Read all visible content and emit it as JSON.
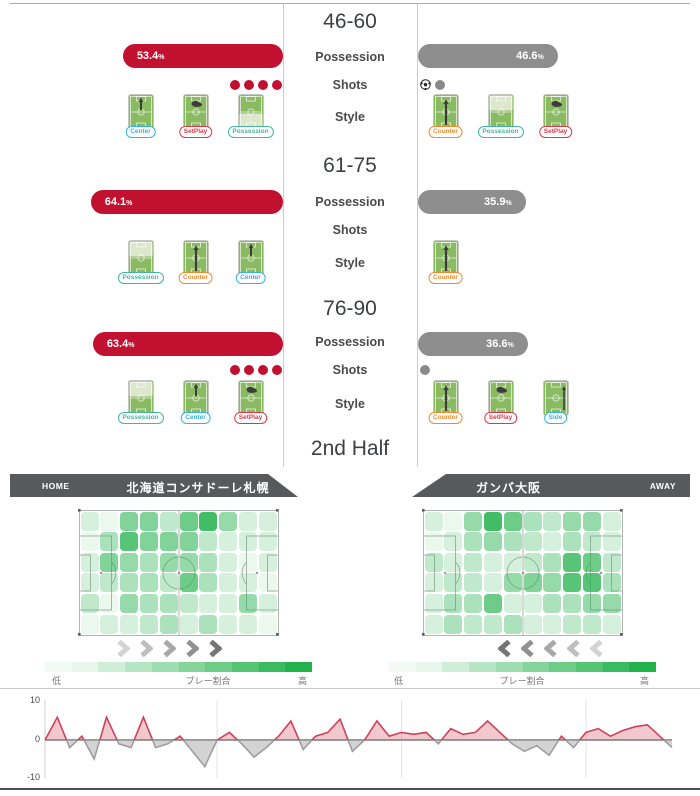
{
  "stat_labels": {
    "possession": "Possession",
    "shots": "Shots",
    "style": "Style"
  },
  "half_label": "2nd Half",
  "teams": {
    "home": {
      "tag": "HOME",
      "name": "北海道コンサドーレ札幌",
      "color": "#c11030"
    },
    "away": {
      "tag": "AWAY",
      "name": "ガンバ大阪",
      "color": "#8e8e8e"
    }
  },
  "style_types": {
    "Center": {
      "color": "#39b1e4",
      "art": "arrow-center"
    },
    "Counter": {
      "color": "#f08c2e",
      "art": "arrow-long"
    },
    "Side": {
      "color": "#39b1e4",
      "art": "arrow-side"
    },
    "SetPlay": {
      "color": "#d93a4a",
      "art": "boot"
    },
    "Possession": {
      "color": "#43b5a0",
      "art": "zone"
    }
  },
  "periods": [
    {
      "home_styles": [
        {
          "type": "Center"
        },
        {
          "type": "SetPlay"
        },
        {
          "type": "Possession",
          "zone": "bottom"
        }
      ],
      "away_styles": [
        {
          "type": "Counter"
        },
        {
          "type": "Possession",
          "zone": "top"
        },
        {
          "type": "SetPlay"
        }
      ]
    },
    {
      "home_styles": [
        {
          "type": "Possession",
          "zone": "top"
        },
        {
          "type": "Counter"
        },
        {
          "type": "Center"
        }
      ],
      "away_styles": [
        {
          "type": "Counter"
        }
      ]
    },
    {
      "home_styles": [
        {
          "type": "Possession",
          "zone": "top"
        },
        {
          "type": "Center"
        },
        {
          "type": "SetPlay"
        }
      ],
      "away_styles": [
        {
          "type": "Counter"
        },
        {
          "type": "SetPlay"
        },
        {
          "type": "Side"
        }
      ]
    }
  ],
  "legend": {
    "low": "低",
    "mid": "プレー割合",
    "high": "高",
    "colors": [
      "#f2faf4",
      "#e7f7eb",
      "#ceeed7",
      "#b5e5c3",
      "#9dddaf",
      "#84d49c",
      "#6ccc88",
      "#53c374",
      "#3bbb61",
      "#22b24c"
    ]
  },
  "flow": {
    "home_direction": "right",
    "away_direction": "left",
    "chevron_colors": [
      "#d3d3d3",
      "#bfbfbf",
      "#a9a9a9",
      "#919191",
      "#757575"
    ]
  },
  "chart_data": [
    {
      "type": "bar",
      "name": "possession_by_period",
      "unit": "%",
      "categories": [
        "46-60",
        "61-75",
        "76-90"
      ],
      "series": [
        {
          "name": "home",
          "color": "#c11030",
          "values": [
            53.4,
            64.1,
            63.4
          ]
        },
        {
          "name": "away",
          "color": "#8e8e8e",
          "values": [
            46.6,
            35.9,
            36.6
          ]
        }
      ]
    },
    {
      "type": "bar",
      "name": "shots_by_period",
      "categories": [
        "46-60",
        "61-75",
        "76-90"
      ],
      "series": [
        {
          "name": "home",
          "color": "#c11030",
          "values": [
            4,
            0,
            4
          ]
        },
        {
          "name": "away",
          "color": "#8a8a8a",
          "values": [
            2,
            0,
            1
          ]
        }
      ],
      "goals": {
        "home": [
          0,
          0,
          0
        ],
        "away": [
          1,
          0,
          0
        ]
      }
    },
    {
      "type": "heatmap",
      "name": "home_play_share",
      "title": "北海道コンサドーレ札幌 プレー割合",
      "scale": {
        "low": "低",
        "high": "高"
      },
      "value_range": [
        0,
        5
      ],
      "grid": [
        [
          1,
          0.5,
          3,
          3,
          1.5,
          3.5,
          4.5,
          2.5,
          1,
          1
        ],
        [
          0.5,
          2,
          4,
          3,
          3,
          3,
          1.5,
          1,
          1,
          1
        ],
        [
          1,
          3,
          2.5,
          2,
          2.5,
          2.5,
          2,
          1,
          0.5,
          1
        ],
        [
          1,
          1.5,
          2,
          2,
          1.5,
          3.5,
          2,
          1,
          1,
          0.5
        ],
        [
          1.5,
          0.5,
          2.5,
          2,
          2,
          1.5,
          1,
          1,
          2.5,
          1
        ],
        [
          0.5,
          1,
          1,
          1.5,
          2,
          1,
          2,
          1,
          1,
          0.5
        ]
      ]
    },
    {
      "type": "heatmap",
      "name": "away_play_share",
      "title": "ガンバ大阪 プレー割合",
      "scale": {
        "low": "低",
        "high": "高"
      },
      "value_range": [
        0,
        5
      ],
      "grid": [
        [
          1,
          0.5,
          2.5,
          4.5,
          3.5,
          2,
          1.5,
          2.5,
          2.5,
          1
        ],
        [
          0.5,
          1,
          2,
          2.5,
          2,
          1.5,
          1,
          2,
          1.5,
          1
        ],
        [
          1.5,
          1,
          1.5,
          1,
          1,
          1.5,
          2,
          4,
          3.5,
          1.5
        ],
        [
          1,
          1.5,
          1.5,
          1,
          2.5,
          3,
          2.5,
          4,
          4,
          2
        ],
        [
          1,
          2,
          2,
          3.5,
          1,
          1,
          2,
          2,
          2.5,
          2.5
        ],
        [
          1,
          2,
          1.5,
          1.5,
          2,
          1,
          1,
          1.5,
          1.5,
          1
        ]
      ]
    },
    {
      "type": "line",
      "name": "momentum_2nd_half",
      "x_range": [
        46,
        97
      ],
      "x_gridlines": [
        60,
        75,
        90
      ],
      "ylim": [
        -10,
        10
      ],
      "yticks": [
        10,
        0,
        -10
      ],
      "positive_color": "#cf4258",
      "negative_color": "#9e9e9e",
      "values": [
        0,
        6,
        -2,
        1,
        -5,
        6,
        -1,
        -2,
        6,
        -2,
        -1,
        1,
        -3,
        -7,
        0,
        2,
        -1,
        -4.5,
        -2,
        1,
        5,
        -2.5,
        1,
        2,
        5.5,
        -3,
        0,
        5,
        1,
        2,
        1.5,
        2,
        -1,
        3,
        1.5,
        2,
        5,
        2,
        -1,
        -3,
        -1.5,
        -4,
        1,
        -2,
        2,
        3,
        1,
        2.5,
        3.5,
        4,
        1,
        -2
      ]
    }
  ]
}
